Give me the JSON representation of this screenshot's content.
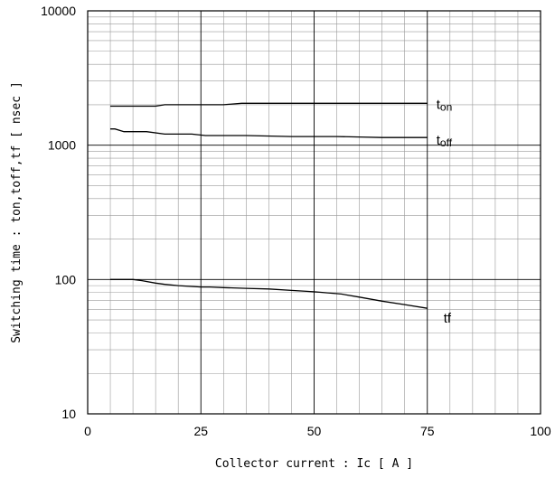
{
  "chart_data": {
    "type": "line",
    "xlabel": "Collector current : Ic [ A ]",
    "ylabel": "Switching time : ton,toff,tf [ nsec ]",
    "xlim": [
      0,
      100
    ],
    "ylim": [
      10,
      10000
    ],
    "yscale": "log",
    "grid": true,
    "x_ticks": [
      0,
      25,
      50,
      75,
      100
    ],
    "x_tick_labels": [
      "0",
      "25",
      "50",
      "75",
      "100"
    ],
    "y_ticks": [
      10,
      100,
      1000,
      10000
    ],
    "y_tick_labels": [
      "10",
      "100",
      "1000",
      "10000"
    ],
    "series": [
      {
        "name": "ton",
        "x": [
          5,
          10,
          15,
          17,
          20,
          25,
          30,
          34,
          40,
          50,
          60,
          70,
          75
        ],
        "y": [
          1950,
          1950,
          1950,
          2000,
          2000,
          2000,
          2000,
          2050,
          2050,
          2050,
          2050,
          2050,
          2050
        ]
      },
      {
        "name": "toff",
        "x": [
          5,
          6,
          8,
          10,
          13,
          17,
          20,
          23,
          26,
          30,
          35,
          45,
          55,
          60,
          65,
          70,
          75
        ],
        "y": [
          1320,
          1320,
          1260,
          1260,
          1260,
          1210,
          1210,
          1210,
          1180,
          1180,
          1180,
          1160,
          1160,
          1150,
          1140,
          1140,
          1140
        ]
      },
      {
        "name": "tf",
        "x": [
          5,
          10,
          12,
          15,
          17,
          20,
          25,
          27,
          30,
          35,
          40,
          45,
          50,
          56,
          60,
          65,
          70,
          75
        ],
        "y": [
          100,
          100,
          98,
          94,
          92,
          90,
          88,
          88,
          87,
          86,
          85,
          83,
          81,
          78,
          74,
          69,
          65,
          61
        ]
      }
    ],
    "series_labels": {
      "ton_prefix": "t",
      "ton_sub": "on",
      "toff_prefix": "t",
      "toff_sub": "off",
      "tf_text": "tf"
    }
  }
}
